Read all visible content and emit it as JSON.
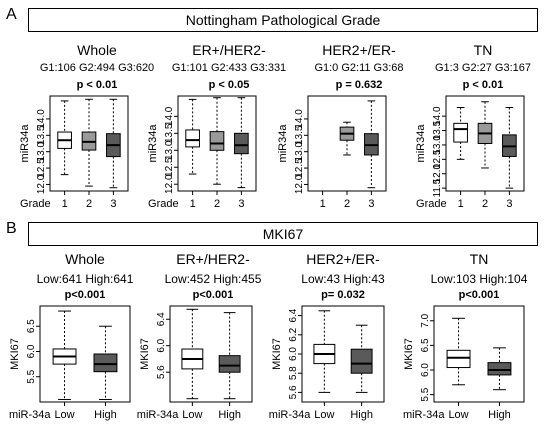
{
  "panel_a": {
    "letter": "A",
    "title": "Nottingham Pathological Grade",
    "x_axis_name": "Grade",
    "y_axis_label": "miR34a",
    "groups": [
      {
        "name": "Whole",
        "counts": "G1:106  G2:494  G3:620",
        "p": "p < 0.01"
      },
      {
        "name": "ER+/HER2-",
        "counts": "G1:101  G2:433  G3:331",
        "p": "p < 0.05"
      },
      {
        "name": "HER2+/ER-",
        "counts": "G1:0  G2:11  G3:68",
        "p": "p = 0.632"
      },
      {
        "name": "TN",
        "counts": "G1:3  G2:27  G3:167",
        "p": "p < 0.01"
      }
    ]
  },
  "panel_b": {
    "letter": "B",
    "title": "MKI67",
    "x_axis_name": "miR-34a",
    "y_axis_label": "MKI67",
    "groups": [
      {
        "name": "Whole",
        "counts": "Low:641 High:641",
        "p": "p<0.001"
      },
      {
        "name": "ER+/HER2-",
        "counts": "Low:452 High:455",
        "p": "p<0.001"
      },
      {
        "name": "HER2+/ER-",
        "counts": "Low:43 High:43",
        "p": "p= 0.032"
      },
      {
        "name": "TN",
        "counts": "Low:103 High:104",
        "p": "p<0.001"
      }
    ]
  },
  "colors": {
    "white": "#ffffff",
    "light_gray": "#9a9a9a",
    "dark_gray": "#5a5a5a"
  },
  "chart_data": [
    {
      "type": "box",
      "subtitle": "Whole",
      "xlabel": "Grade",
      "ylabel": "miR34a",
      "categories": [
        "1",
        "2",
        "3"
      ],
      "yticks": [
        12.0,
        12.5,
        13.0,
        13.5,
        14.0
      ],
      "ylim": [
        11.8,
        14.7
      ],
      "boxes": [
        {
          "whisker_low": 12.3,
          "q1": 13.1,
          "median": 13.35,
          "q3": 13.6,
          "whisker_high": 14.55,
          "fill": "white"
        },
        {
          "whisker_low": 11.95,
          "q1": 13.05,
          "median": 13.3,
          "q3": 13.6,
          "whisker_high": 14.6,
          "fill": "light_gray"
        },
        {
          "whisker_low": 11.9,
          "q1": 12.85,
          "median": 13.2,
          "q3": 13.55,
          "whisker_high": 14.6,
          "fill": "dark_gray"
        }
      ]
    },
    {
      "type": "box",
      "subtitle": "ER+/HER2-",
      "xlabel": "Grade",
      "ylabel": "miR34a",
      "categories": [
        "1",
        "2",
        "3"
      ],
      "yticks": [
        12.0,
        12.5,
        13.0,
        13.5,
        14.0
      ],
      "ylim": [
        11.8,
        14.6
      ],
      "boxes": [
        {
          "whisker_low": 12.3,
          "q1": 13.1,
          "median": 13.3,
          "q3": 13.6,
          "whisker_high": 14.5,
          "fill": "white"
        },
        {
          "whisker_low": 12.0,
          "q1": 13.0,
          "median": 13.2,
          "q3": 13.55,
          "whisker_high": 14.55,
          "fill": "light_gray"
        },
        {
          "whisker_low": 11.9,
          "q1": 12.9,
          "median": 13.15,
          "q3": 13.5,
          "whisker_high": 14.55,
          "fill": "dark_gray"
        }
      ]
    },
    {
      "type": "box",
      "subtitle": "HER2+/ER-",
      "xlabel": "",
      "ylabel": "miR34a",
      "categories": [
        "1",
        "2",
        "3"
      ],
      "yticks": [
        12.0,
        12.5,
        13.0,
        13.5,
        14.0
      ],
      "ylim": [
        11.8,
        14.7
      ],
      "boxes": [
        null,
        {
          "whisker_low": 12.9,
          "q1": 13.35,
          "median": 13.55,
          "q3": 13.75,
          "whisker_high": 13.9,
          "fill": "light_gray"
        },
        {
          "whisker_low": 11.9,
          "q1": 12.9,
          "median": 13.2,
          "q3": 13.55,
          "whisker_high": 14.55,
          "fill": "dark_gray"
        }
      ]
    },
    {
      "type": "box",
      "subtitle": "TN",
      "xlabel": "Grade",
      "ylabel": "miR34a",
      "categories": [
        "1",
        "2",
        "3"
      ],
      "yticks": [
        11.5,
        12.0,
        12.5,
        13.0,
        13.5,
        14.0
      ],
      "ylim": [
        11.4,
        14.7
      ],
      "boxes": [
        {
          "whisker_low": 12.5,
          "q1": 13.1,
          "median": 13.55,
          "q3": 13.75,
          "whisker_high": 14.3,
          "fill": "white"
        },
        {
          "whisker_low": 12.2,
          "q1": 13.05,
          "median": 13.4,
          "q3": 13.75,
          "whisker_high": 14.5,
          "fill": "light_gray"
        },
        {
          "whisker_low": 11.5,
          "q1": 12.6,
          "median": 12.95,
          "q3": 13.35,
          "whisker_high": 14.3,
          "fill": "dark_gray"
        }
      ]
    },
    {
      "type": "box",
      "subtitle": "Whole",
      "xlabel": "miR-34a",
      "ylabel": "MKI67",
      "categories": [
        "Low",
        "High"
      ],
      "yticks": [
        5.5,
        6.0,
        6.5
      ],
      "ylim": [
        5.0,
        6.9
      ],
      "boxes": [
        {
          "whisker_low": 5.05,
          "q1": 5.75,
          "median": 5.9,
          "q3": 6.05,
          "whisker_high": 6.8,
          "fill": "white"
        },
        {
          "whisker_low": 5.05,
          "q1": 5.6,
          "median": 5.75,
          "q3": 5.95,
          "whisker_high": 6.5,
          "fill": "dark_gray"
        }
      ]
    },
    {
      "type": "box",
      "subtitle": "ER+/HER2-",
      "xlabel": "miR-34a",
      "ylabel": "MKI67",
      "categories": [
        "Low",
        "High"
      ],
      "yticks": [
        5.6,
        6.0,
        6.4
      ],
      "ylim": [
        5.15,
        6.6
      ],
      "boxes": [
        {
          "whisker_low": 5.2,
          "q1": 5.65,
          "median": 5.8,
          "q3": 5.95,
          "whisker_high": 6.55,
          "fill": "white"
        },
        {
          "whisker_low": 5.2,
          "q1": 5.6,
          "median": 5.7,
          "q3": 5.85,
          "whisker_high": 6.5,
          "fill": "dark_gray"
        }
      ]
    },
    {
      "type": "box",
      "subtitle": "HER2+/ER-",
      "xlabel": "miR-34a",
      "ylabel": "MKI67",
      "categories": [
        "Low",
        "High"
      ],
      "yticks": [
        5.6,
        5.8,
        6.0,
        6.2,
        6.4
      ],
      "ylim": [
        5.5,
        6.5
      ],
      "boxes": [
        {
          "whisker_low": 5.6,
          "q1": 5.9,
          "median": 6.0,
          "q3": 6.1,
          "whisker_high": 6.45,
          "fill": "white"
        },
        {
          "whisker_low": 5.6,
          "q1": 5.8,
          "median": 5.9,
          "q3": 6.05,
          "whisker_high": 6.3,
          "fill": "dark_gray"
        }
      ]
    },
    {
      "type": "box",
      "subtitle": "TN",
      "xlabel": "miR-34a",
      "ylabel": "MKI67",
      "categories": [
        "Low",
        "High"
      ],
      "yticks": [
        5.5,
        6.0,
        6.5,
        7.0
      ],
      "ylim": [
        5.35,
        7.3
      ],
      "boxes": [
        {
          "whisker_low": 5.7,
          "q1": 6.05,
          "median": 6.25,
          "q3": 6.4,
          "whisker_high": 7.05,
          "fill": "white"
        },
        {
          "whisker_low": 5.6,
          "q1": 5.9,
          "median": 6.0,
          "q3": 6.15,
          "whisker_high": 6.45,
          "fill": "dark_gray"
        }
      ]
    }
  ]
}
